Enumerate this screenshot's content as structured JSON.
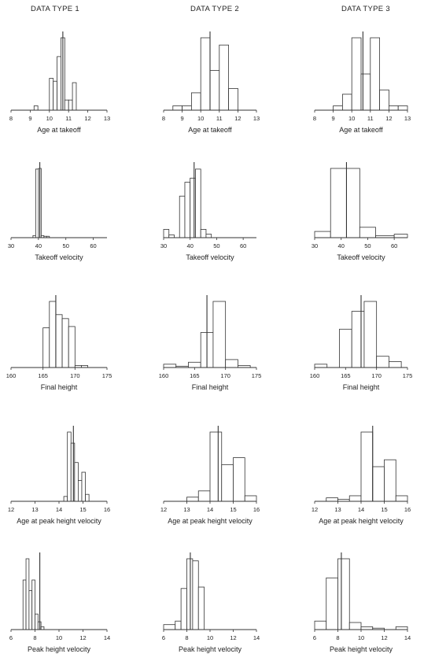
{
  "column_titles": [
    "DATA TYPE 1",
    "DATA TYPE 2",
    "DATA TYPE 3"
  ],
  "chart_data": [
    {
      "type": "histogram",
      "column": "DATA TYPE 1",
      "xlabel": "Age at takeoff",
      "xlim": [
        8,
        13
      ],
      "ticks": [
        8,
        9,
        10,
        11,
        12,
        13
      ],
      "vline": 10.7,
      "bins": [
        {
          "x0": 9.2,
          "x1": 9.4,
          "h": 0.06
        },
        {
          "x0": 10.0,
          "x1": 10.2,
          "h": 0.44
        },
        {
          "x0": 10.2,
          "x1": 10.4,
          "h": 0.4
        },
        {
          "x0": 10.4,
          "x1": 10.6,
          "h": 0.74
        },
        {
          "x0": 10.6,
          "x1": 10.8,
          "h": 1.0
        },
        {
          "x0": 10.8,
          "x1": 11.0,
          "h": 0.14
        },
        {
          "x0": 11.0,
          "x1": 11.2,
          "h": 0.14
        },
        {
          "x0": 11.2,
          "x1": 11.4,
          "h": 0.38
        }
      ]
    },
    {
      "type": "histogram",
      "column": "DATA TYPE 2",
      "xlabel": "Age at takeoff",
      "xlim": [
        8,
        13
      ],
      "ticks": [
        8,
        9,
        10,
        11,
        12,
        13
      ],
      "vline": 10.5,
      "bins": [
        {
          "x0": 8.5,
          "x1": 9.0,
          "h": 0.06
        },
        {
          "x0": 9.0,
          "x1": 9.5,
          "h": 0.06
        },
        {
          "x0": 9.5,
          "x1": 10.0,
          "h": 0.24
        },
        {
          "x0": 10.0,
          "x1": 10.5,
          "h": 1.0
        },
        {
          "x0": 10.5,
          "x1": 11.0,
          "h": 0.55
        },
        {
          "x0": 11.0,
          "x1": 11.5,
          "h": 0.9
        },
        {
          "x0": 11.5,
          "x1": 12.0,
          "h": 0.3
        }
      ]
    },
    {
      "type": "histogram",
      "column": "DATA TYPE 3",
      "xlabel": "Age at takeoff",
      "xlim": [
        8,
        13
      ],
      "ticks": [
        8,
        9,
        10,
        11,
        12,
        13
      ],
      "vline": 10.6,
      "bins": [
        {
          "x0": 9.0,
          "x1": 9.5,
          "h": 0.06
        },
        {
          "x0": 9.5,
          "x1": 10.0,
          "h": 0.22
        },
        {
          "x0": 10.0,
          "x1": 10.5,
          "h": 1.0
        },
        {
          "x0": 10.5,
          "x1": 11.0,
          "h": 0.5
        },
        {
          "x0": 11.0,
          "x1": 11.5,
          "h": 1.0
        },
        {
          "x0": 11.5,
          "x1": 12.0,
          "h": 0.28
        },
        {
          "x0": 12.0,
          "x1": 12.5,
          "h": 0.06
        },
        {
          "x0": 12.5,
          "x1": 13.0,
          "h": 0.06
        }
      ]
    },
    {
      "type": "histogram",
      "column": "DATA TYPE 1",
      "xlabel": "Takeoff velocity",
      "xlim": [
        30,
        65
      ],
      "ticks": [
        30,
        40,
        50,
        60
      ],
      "vline": 40.5,
      "bins": [
        {
          "x0": 38,
          "x1": 39,
          "h": 0.03
        },
        {
          "x0": 39,
          "x1": 40,
          "h": 0.99
        },
        {
          "x0": 40,
          "x1": 41,
          "h": 1.0
        },
        {
          "x0": 41,
          "x1": 42,
          "h": 0.03
        },
        {
          "x0": 42,
          "x1": 43,
          "h": 0.02
        },
        {
          "x0": 43,
          "x1": 44,
          "h": 0.02
        }
      ]
    },
    {
      "type": "histogram",
      "column": "DATA TYPE 2",
      "xlabel": "Takeoff velocity",
      "xlim": [
        30,
        65
      ],
      "ticks": [
        30,
        40,
        50,
        60
      ],
      "vline": 41.5,
      "bins": [
        {
          "x0": 30,
          "x1": 32,
          "h": 0.12
        },
        {
          "x0": 32,
          "x1": 34,
          "h": 0.04
        },
        {
          "x0": 36,
          "x1": 38,
          "h": 0.6
        },
        {
          "x0": 38,
          "x1": 40,
          "h": 0.8
        },
        {
          "x0": 40,
          "x1": 42,
          "h": 0.86
        },
        {
          "x0": 42,
          "x1": 44,
          "h": 0.99
        },
        {
          "x0": 44,
          "x1": 46,
          "h": 0.12
        },
        {
          "x0": 46,
          "x1": 48,
          "h": 0.05
        }
      ]
    },
    {
      "type": "histogram",
      "column": "DATA TYPE 3",
      "xlabel": "Takeoff velocity",
      "xlim": [
        30,
        65
      ],
      "ticks": [
        30,
        40,
        50,
        60
      ],
      "vline": 42,
      "bins": [
        {
          "x0": 30,
          "x1": 36,
          "h": 0.09
        },
        {
          "x0": 36,
          "x1": 42,
          "h": 1.0
        },
        {
          "x0": 42,
          "x1": 47,
          "h": 1.0
        },
        {
          "x0": 47,
          "x1": 53,
          "h": 0.15
        },
        {
          "x0": 53,
          "x1": 60,
          "h": 0.03
        },
        {
          "x0": 60,
          "x1": 65,
          "h": 0.05
        }
      ]
    },
    {
      "type": "histogram",
      "column": "DATA TYPE 1",
      "xlabel": "Final height",
      "xlim": [
        160,
        175
      ],
      "ticks": [
        160,
        165,
        170,
        175
      ],
      "vline": 167,
      "bins": [
        {
          "x0": 165,
          "x1": 166,
          "h": 0.6
        },
        {
          "x0": 166,
          "x1": 167,
          "h": 1.0
        },
        {
          "x0": 167,
          "x1": 168,
          "h": 0.8
        },
        {
          "x0": 168,
          "x1": 169,
          "h": 0.74
        },
        {
          "x0": 169,
          "x1": 170,
          "h": 0.62
        },
        {
          "x0": 170,
          "x1": 171,
          "h": 0.03
        },
        {
          "x0": 171,
          "x1": 172,
          "h": 0.03
        }
      ]
    },
    {
      "type": "histogram",
      "column": "DATA TYPE 2",
      "xlabel": "Final height",
      "xlim": [
        160,
        175
      ],
      "ticks": [
        160,
        165,
        170,
        175
      ],
      "vline": 167,
      "bins": [
        {
          "x0": 160,
          "x1": 162,
          "h": 0.05
        },
        {
          "x0": 162,
          "x1": 164,
          "h": 0.02
        },
        {
          "x0": 164,
          "x1": 166,
          "h": 0.08
        },
        {
          "x0": 166,
          "x1": 168,
          "h": 0.53
        },
        {
          "x0": 168,
          "x1": 170,
          "h": 1.0
        },
        {
          "x0": 170,
          "x1": 172,
          "h": 0.12
        },
        {
          "x0": 172,
          "x1": 174,
          "h": 0.03
        }
      ]
    },
    {
      "type": "histogram",
      "column": "DATA TYPE 3",
      "xlabel": "Final height",
      "xlim": [
        160,
        175
      ],
      "ticks": [
        160,
        165,
        170,
        175
      ],
      "vline": 167.5,
      "bins": [
        {
          "x0": 160,
          "x1": 162,
          "h": 0.05
        },
        {
          "x0": 164,
          "x1": 166,
          "h": 0.58
        },
        {
          "x0": 166,
          "x1": 168,
          "h": 0.85
        },
        {
          "x0": 168,
          "x1": 170,
          "h": 1.0
        },
        {
          "x0": 170,
          "x1": 172,
          "h": 0.17
        },
        {
          "x0": 172,
          "x1": 174,
          "h": 0.09
        }
      ]
    },
    {
      "type": "histogram",
      "column": "DATA TYPE 1",
      "xlabel": "Age at peak height velocity",
      "xlim": [
        12,
        16
      ],
      "ticks": [
        12,
        13,
        14,
        15,
        16
      ],
      "vline": 14.6,
      "bins": [
        {
          "x0": 14.2,
          "x1": 14.35,
          "h": 0.07
        },
        {
          "x0": 14.35,
          "x1": 14.5,
          "h": 1.0
        },
        {
          "x0": 14.5,
          "x1": 14.65,
          "h": 0.84
        },
        {
          "x0": 14.65,
          "x1": 14.8,
          "h": 0.56
        },
        {
          "x0": 14.8,
          "x1": 14.95,
          "h": 0.3
        },
        {
          "x0": 14.95,
          "x1": 15.1,
          "h": 0.42
        },
        {
          "x0": 15.1,
          "x1": 15.25,
          "h": 0.1
        }
      ]
    },
    {
      "type": "histogram",
      "column": "DATA TYPE 2",
      "xlabel": "Age at peak height velocity",
      "xlim": [
        12,
        16
      ],
      "ticks": [
        12,
        13,
        14,
        15,
        16
      ],
      "vline": 14.35,
      "bins": [
        {
          "x0": 13.0,
          "x1": 13.5,
          "h": 0.06
        },
        {
          "x0": 13.5,
          "x1": 14.0,
          "h": 0.15
        },
        {
          "x0": 14.0,
          "x1": 14.5,
          "h": 1.0
        },
        {
          "x0": 14.5,
          "x1": 15.0,
          "h": 0.53
        },
        {
          "x0": 15.0,
          "x1": 15.5,
          "h": 0.63
        },
        {
          "x0": 15.5,
          "x1": 16.0,
          "h": 0.08
        }
      ]
    },
    {
      "type": "histogram",
      "column": "DATA TYPE 3",
      "xlabel": "Age at peak height velocity",
      "xlim": [
        12,
        16
      ],
      "ticks": [
        12,
        13,
        14,
        15,
        16
      ],
      "vline": 14.5,
      "bins": [
        {
          "x0": 12.5,
          "x1": 13.0,
          "h": 0.05
        },
        {
          "x0": 13.0,
          "x1": 13.5,
          "h": 0.03
        },
        {
          "x0": 13.5,
          "x1": 14.0,
          "h": 0.08
        },
        {
          "x0": 14.0,
          "x1": 14.5,
          "h": 1.0
        },
        {
          "x0": 14.5,
          "x1": 15.0,
          "h": 0.5
        },
        {
          "x0": 15.0,
          "x1": 15.5,
          "h": 0.6
        },
        {
          "x0": 15.5,
          "x1": 16.0,
          "h": 0.08
        }
      ]
    },
    {
      "type": "histogram",
      "column": "DATA TYPE 1",
      "xlabel": "Peak height velocity",
      "xlim": [
        6,
        14
      ],
      "ticks": [
        6,
        8,
        10,
        12,
        14
      ],
      "vline": 8.4,
      "bins": [
        {
          "x0": 7.0,
          "x1": 7.25,
          "h": 0.7
        },
        {
          "x0": 7.25,
          "x1": 7.5,
          "h": 1.0
        },
        {
          "x0": 7.5,
          "x1": 7.75,
          "h": 0.55
        },
        {
          "x0": 7.75,
          "x1": 8.0,
          "h": 0.7
        },
        {
          "x0": 8.0,
          "x1": 8.25,
          "h": 0.22
        },
        {
          "x0": 8.25,
          "x1": 8.5,
          "h": 0.11
        },
        {
          "x0": 8.5,
          "x1": 8.75,
          "h": 0.04
        }
      ]
    },
    {
      "type": "histogram",
      "column": "DATA TYPE 2",
      "xlabel": "Peak height velocity",
      "xlim": [
        6,
        14
      ],
      "ticks": [
        6,
        8,
        10,
        12,
        14
      ],
      "vline": 8.3,
      "bins": [
        {
          "x0": 6.0,
          "x1": 7.0,
          "h": 0.07
        },
        {
          "x0": 7.0,
          "x1": 7.5,
          "h": 0.12
        },
        {
          "x0": 7.5,
          "x1": 8.0,
          "h": 0.58
        },
        {
          "x0": 8.0,
          "x1": 8.5,
          "h": 1.0
        },
        {
          "x0": 8.5,
          "x1": 9.0,
          "h": 0.97
        },
        {
          "x0": 9.0,
          "x1": 9.5,
          "h": 0.6
        }
      ]
    },
    {
      "type": "histogram",
      "column": "DATA TYPE 3",
      "xlabel": "Peak height velocity",
      "xlim": [
        6,
        14
      ],
      "ticks": [
        6,
        8,
        10,
        12,
        14
      ],
      "vline": 8.3,
      "bins": [
        {
          "x0": 6.0,
          "x1": 7.0,
          "h": 0.12
        },
        {
          "x0": 7.0,
          "x1": 8.0,
          "h": 0.73
        },
        {
          "x0": 8.0,
          "x1": 9.0,
          "h": 1.0
        },
        {
          "x0": 9.0,
          "x1": 10.0,
          "h": 0.1
        },
        {
          "x0": 10.0,
          "x1": 11.0,
          "h": 0.04
        },
        {
          "x0": 11.0,
          "x1": 12.0,
          "h": 0.02
        },
        {
          "x0": 13.0,
          "x1": 14.0,
          "h": 0.04
        }
      ]
    }
  ]
}
